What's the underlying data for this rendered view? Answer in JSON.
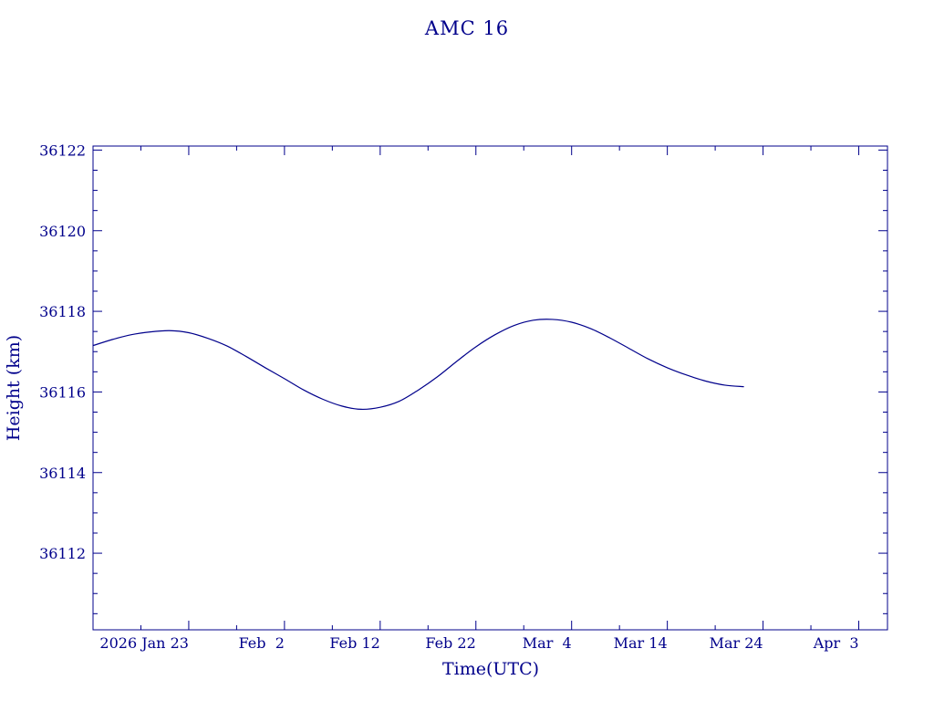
{
  "chart_data": {
    "type": "line",
    "title": "AMC 16",
    "xlabel": "Time(UTC)",
    "ylabel": "Height (km)",
    "color": "#00008b",
    "x_axis": {
      "type": "date",
      "range": [
        "2026-01-13",
        "2026-04-06"
      ],
      "ticks": [
        {
          "date": "2026-01-23",
          "label": "2026 Jan 23"
        },
        {
          "date": "2026-02-02",
          "label": "Feb  2"
        },
        {
          "date": "2026-02-12",
          "label": "Feb 12"
        },
        {
          "date": "2026-02-22",
          "label": "Feb 22"
        },
        {
          "date": "2026-03-04",
          "label": "Mar  4"
        },
        {
          "date": "2026-03-14",
          "label": "Mar 14"
        },
        {
          "date": "2026-03-24",
          "label": "Mar 24"
        },
        {
          "date": "2026-04-03",
          "label": "Apr  3"
        }
      ]
    },
    "y_axis": {
      "range": [
        36110.1,
        36122.1
      ],
      "ticks": [
        36112,
        36114,
        36116,
        36118,
        36120,
        36122
      ]
    },
    "grid": false,
    "series": [
      {
        "x": [
          "2026-01-13",
          "2026-01-15",
          "2026-01-17",
          "2026-01-19",
          "2026-01-21",
          "2026-01-23",
          "2026-01-25",
          "2026-01-27",
          "2026-01-29",
          "2026-01-31",
          "2026-02-02",
          "2026-02-04",
          "2026-02-06",
          "2026-02-08",
          "2026-02-10",
          "2026-02-12",
          "2026-02-14",
          "2026-02-16",
          "2026-02-18",
          "2026-02-20",
          "2026-02-22",
          "2026-02-24",
          "2026-02-26",
          "2026-02-28",
          "2026-03-02",
          "2026-03-04",
          "2026-03-06",
          "2026-03-08",
          "2026-03-10",
          "2026-03-12",
          "2026-03-14",
          "2026-03-16",
          "2026-03-18",
          "2026-03-20",
          "2026-03-22"
        ],
        "y": [
          36117.15,
          36117.3,
          36117.42,
          36117.49,
          36117.52,
          36117.47,
          36117.33,
          36117.14,
          36116.88,
          36116.6,
          36116.33,
          36116.05,
          36115.82,
          36115.65,
          36115.57,
          36115.62,
          36115.77,
          36116.05,
          36116.38,
          36116.76,
          36117.12,
          36117.42,
          36117.65,
          36117.78,
          36117.8,
          36117.73,
          36117.57,
          36117.34,
          36117.08,
          36116.82,
          36116.6,
          36116.42,
          36116.27,
          36116.17,
          36116.13
        ]
      }
    ]
  }
}
